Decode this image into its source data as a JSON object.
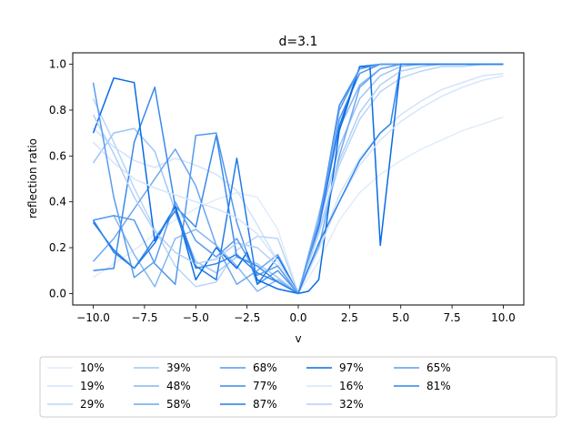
{
  "chart_data": {
    "type": "line",
    "title": "d=3.1",
    "xlabel": "v",
    "ylabel": "reflection ratio",
    "xlim": [
      -11,
      11
    ],
    "ylim": [
      -0.05,
      1.05
    ],
    "xticks": [
      -10,
      -7.5,
      -5,
      -2.5,
      0,
      2.5,
      5,
      7.5,
      10
    ],
    "xtick_labels": [
      "−10.0",
      "−7.5",
      "−5.0",
      "−2.5",
      "0.0",
      "2.5",
      "5.0",
      "7.5",
      "10.0"
    ],
    "yticks": [
      0,
      0.2,
      0.4,
      0.6,
      0.8,
      1.0
    ],
    "ytick_labels": [
      "0.0",
      "0.2",
      "0.4",
      "0.6",
      "0.8",
      "1.0"
    ],
    "grid": false,
    "legend_placement": "below-plot",
    "legend_columns": 6,
    "series": [
      {
        "name": "10%",
        "color": "#e0ecfb",
        "x": [
          -10,
          -9,
          -8,
          -7,
          -6,
          -5,
          -4,
          -3,
          -2,
          -1,
          0,
          1,
          2,
          3,
          4,
          5,
          6,
          7,
          8,
          9,
          10
        ],
        "y": [
          0.07,
          0.13,
          0.19,
          0.26,
          0.32,
          0.37,
          0.41,
          0.44,
          0.42,
          0.28,
          0.0,
          0.14,
          0.32,
          0.44,
          0.52,
          0.58,
          0.63,
          0.67,
          0.71,
          0.74,
          0.77
        ]
      },
      {
        "name": "19%",
        "color": "#d1e3fa",
        "x": [
          -10,
          -9,
          -8,
          -7,
          -6,
          -5,
          -4,
          -3,
          -2,
          -1,
          0,
          1,
          2,
          3,
          4,
          5,
          6,
          7,
          8,
          9,
          10
        ],
        "y": [
          0.72,
          0.64,
          0.58,
          0.55,
          0.59,
          0.56,
          0.52,
          0.45,
          0.3,
          0.14,
          0.0,
          0.2,
          0.43,
          0.59,
          0.7,
          0.78,
          0.84,
          0.89,
          0.92,
          0.95,
          0.96
        ]
      },
      {
        "name": "29%",
        "color": "#b8d5f8",
        "x": [
          -10,
          -9,
          -8,
          -7,
          -6,
          -5,
          -4,
          -3,
          -2,
          -1,
          0,
          1,
          2,
          3,
          4,
          5,
          6,
          7,
          8,
          9,
          10
        ],
        "y": [
          0.85,
          0.66,
          0.46,
          0.28,
          0.12,
          0.03,
          0.05,
          0.19,
          0.25,
          0.24,
          0.0,
          0.26,
          0.56,
          0.76,
          0.88,
          0.94,
          0.97,
          0.99,
          0.99,
          1.0,
          1.0
        ]
      },
      {
        "name": "39%",
        "color": "#9fc6f6",
        "x": [
          -10,
          -9,
          -8,
          -7,
          -6,
          -5,
          -4,
          -3,
          -2,
          -1,
          0,
          1,
          2,
          3,
          4,
          5,
          6,
          7,
          8,
          9,
          10
        ],
        "y": [
          0.57,
          0.7,
          0.72,
          0.62,
          0.36,
          0.14,
          0.09,
          0.16,
          0.13,
          0.07,
          0.0,
          0.3,
          0.64,
          0.85,
          0.95,
          0.99,
          1.0,
          1.0,
          1.0,
          1.0,
          1.0
        ]
      },
      {
        "name": "48%",
        "color": "#85b6f3",
        "x": [
          -10,
          -9,
          -8,
          -7,
          -6,
          -5,
          -4,
          -3,
          -2,
          -1,
          0,
          1,
          2,
          3,
          4,
          5,
          6,
          7,
          8,
          9,
          10
        ],
        "y": [
          0.32,
          0.34,
          0.17,
          0.03,
          0.24,
          0.28,
          0.21,
          0.12,
          0.01,
          0.06,
          0.0,
          0.34,
          0.72,
          0.91,
          0.98,
          1.0,
          1.0,
          1.0,
          1.0,
          1.0,
          1.0
        ]
      },
      {
        "name": "58%",
        "color": "#6ca7f1",
        "x": [
          -10,
          -9,
          -8,
          -7,
          -6,
          -5,
          -4,
          -3,
          -2,
          -1,
          0,
          1,
          2,
          3,
          4,
          5,
          6,
          7,
          8,
          9,
          10
        ],
        "y": [
          0.14,
          0.24,
          0.37,
          0.5,
          0.63,
          0.47,
          0.21,
          0.04,
          0.1,
          0.17,
          0.0,
          0.2,
          0.6,
          0.9,
          0.98,
          1.0,
          1.0,
          1.0,
          1.0,
          1.0,
          1.0
        ]
      },
      {
        "name": "68%",
        "color": "#5398ee",
        "x": [
          -10,
          -9,
          -8,
          -7,
          -6,
          -5,
          -4,
          -3,
          -2,
          -1,
          0,
          1,
          2,
          3,
          4,
          5,
          6,
          7,
          8,
          9,
          10
        ],
        "y": [
          0.32,
          0.34,
          0.32,
          0.13,
          0.04,
          0.69,
          0.7,
          0.31,
          0.04,
          0.1,
          0.0,
          0.28,
          0.76,
          0.96,
          1.0,
          1.0,
          1.0,
          1.0,
          1.0,
          1.0,
          1.0
        ]
      },
      {
        "name": "77%",
        "color": "#3a89ec",
        "x": [
          -10,
          -9,
          -8,
          -7,
          -6,
          -5,
          -4,
          -3,
          -2,
          -1,
          0,
          1,
          2,
          3,
          4,
          5,
          6,
          7,
          8,
          9,
          10
        ],
        "y": [
          0.1,
          0.11,
          0.66,
          0.9,
          0.38,
          0.29,
          0.69,
          0.16,
          0.12,
          0.05,
          0.0,
          0.31,
          0.82,
          0.98,
          1.0,
          1.0,
          1.0,
          1.0,
          1.0,
          1.0,
          1.0
        ]
      },
      {
        "name": "87%",
        "color": "#217aea",
        "x": [
          -10,
          -9,
          -8,
          -7,
          -6,
          -5,
          -4,
          -3,
          -2,
          -1,
          0,
          1,
          2,
          3,
          4,
          5,
          6,
          7,
          8,
          9,
          10
        ],
        "y": [
          0.31,
          0.19,
          0.11,
          0.22,
          0.38,
          0.12,
          0.06,
          0.59,
          0.04,
          0.16,
          0.0,
          0.29,
          0.73,
          0.99,
          1.0,
          1.0,
          1.0,
          1.0,
          1.0,
          1.0,
          1.0
        ]
      },
      {
        "name": "97%",
        "color": "#086be7",
        "x": [
          -10,
          -9,
          -8,
          -7,
          -6,
          -5,
          -4,
          -3,
          -2.5,
          -2,
          -1,
          0,
          0.5,
          1,
          2,
          3,
          3.5,
          4,
          5,
          6,
          7,
          8,
          9,
          10
        ],
        "y": [
          0.7,
          0.94,
          0.92,
          0.23,
          0.38,
          0.06,
          0.2,
          0.11,
          0.18,
          0.06,
          0.02,
          0.0,
          0.01,
          0.06,
          0.71,
          0.99,
          0.99,
          0.21,
          1.0,
          1.0,
          1.0,
          1.0,
          1.0,
          1.0
        ]
      },
      {
        "name": "16%",
        "color": "#d6e6fa",
        "x": [
          -10,
          -9,
          -8,
          -7,
          -6,
          -5,
          -4,
          -3,
          -2,
          -1,
          0,
          1,
          2,
          3,
          4,
          5,
          6,
          7,
          8,
          9,
          10
        ],
        "y": [
          0.66,
          0.57,
          0.5,
          0.46,
          0.43,
          0.4,
          0.37,
          0.33,
          0.26,
          0.14,
          0.0,
          0.19,
          0.4,
          0.56,
          0.67,
          0.75,
          0.81,
          0.86,
          0.9,
          0.93,
          0.95
        ]
      },
      {
        "name": "32%",
        "color": "#b0d0f7",
        "x": [
          -10,
          -9,
          -8,
          -7,
          -6,
          -5,
          -4,
          -3,
          -2,
          -1,
          0,
          1,
          2,
          3,
          4,
          5,
          6,
          7,
          8,
          9,
          10
        ],
        "y": [
          0.78,
          0.61,
          0.42,
          0.27,
          0.18,
          0.13,
          0.15,
          0.22,
          0.2,
          0.12,
          0.0,
          0.27,
          0.58,
          0.79,
          0.91,
          0.97,
          0.99,
          1.0,
          1.0,
          1.0,
          1.0
        ]
      },
      {
        "name": "65%",
        "color": "#5a9cef",
        "x": [
          -10,
          -9,
          -8,
          -7,
          -6,
          -5,
          -4,
          -3,
          -2,
          -1,
          0,
          1,
          2,
          3,
          4,
          5,
          6,
          7,
          8,
          9,
          10
        ],
        "y": [
          0.92,
          0.42,
          0.07,
          0.14,
          0.4,
          0.23,
          0.16,
          0.24,
          0.08,
          0.12,
          0.0,
          0.31,
          0.8,
          0.98,
          1.0,
          1.0,
          1.0,
          1.0,
          1.0,
          1.0,
          1.0
        ]
      },
      {
        "name": "81%",
        "color": "#2e83eb",
        "x": [
          -10,
          -9,
          -8,
          -7,
          -6,
          -5,
          -4,
          -3,
          -2,
          -1,
          0,
          1,
          2,
          3,
          4,
          4.5,
          5,
          6,
          7,
          8,
          9,
          10
        ],
        "y": [
          0.32,
          0.18,
          0.11,
          0.24,
          0.36,
          0.11,
          0.13,
          0.17,
          0.09,
          0.05,
          0.0,
          0.22,
          0.4,
          0.58,
          0.7,
          0.74,
          1.0,
          1.0,
          1.0,
          1.0,
          1.0,
          1.0
        ]
      }
    ]
  }
}
